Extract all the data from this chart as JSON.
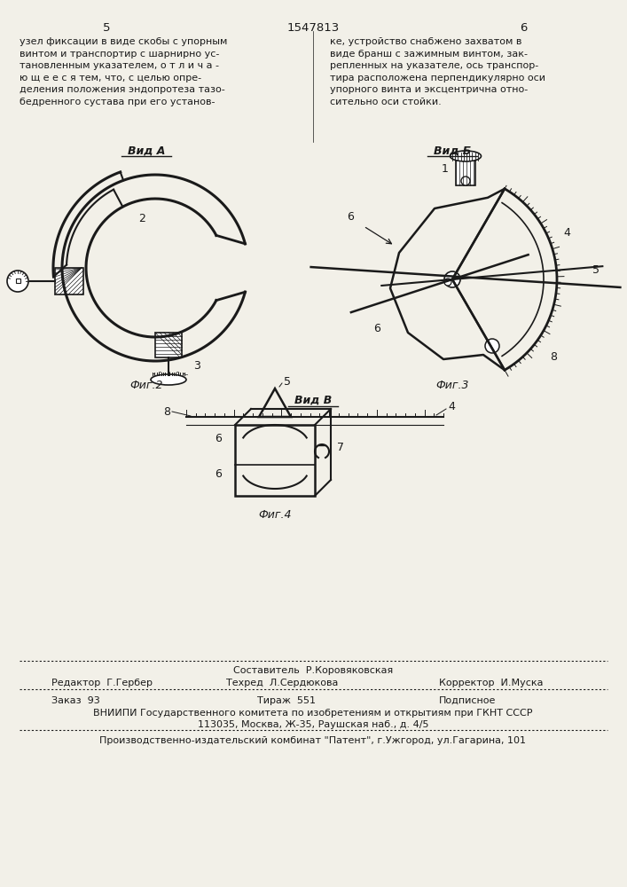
{
  "page_color": "#f2f0e8",
  "line_color": "#1a1a1a",
  "header_num_left": "5",
  "header_num_center": "1547813",
  "header_num_right": "6",
  "header_text_left": "узел фиксации в виде скобы с упорным\nвинтом и транспортир с шарнирно ус-\nтановленным указателем, о т л и ч а -\nю щ е е с я тем, что, с целью опре-\nделения положения эндопротеза тазо-\nбедренного сустава при его установ-",
  "header_text_right": "ке, устройство снабжено захватом в\nвиде бранш с зажимным винтом, зак-\nрепленных на указателе, ось транспор-\nтира расположена перпендикулярно оси\nупорного винта и эксцентрична отно-\nсительно оси стойки.",
  "vid_a": "Вид А",
  "vid_b": "Вид Б",
  "vid_v": "Вид В",
  "fig2": "Фиг.2",
  "fig3": "Фиг.3",
  "fig4": "Фиг.4",
  "footer_sostavitel": "Составитель  Р.Коровяковская",
  "footer_editor": "Редактор  Г.Гербер",
  "footer_techred": "Техред  Л.Сердюкова",
  "footer_corrector": "Корректор  И.Муска",
  "footer_zakaz": "Заказ  93",
  "footer_tirazh": "Тираж  551",
  "footer_podpisnoe": "Подписное",
  "footer_vniip": "ВНИИПИ Государственного комитета по изобретениям и открытиям при ГКНТ СССР",
  "footer_address": "113035, Москва, Ж-35, Раушская наб., д. 4/5",
  "footer_kombnat": "Производственно-издательский комбинат \"Патент\", г.Ужгород, ул.Гагарина, 101"
}
